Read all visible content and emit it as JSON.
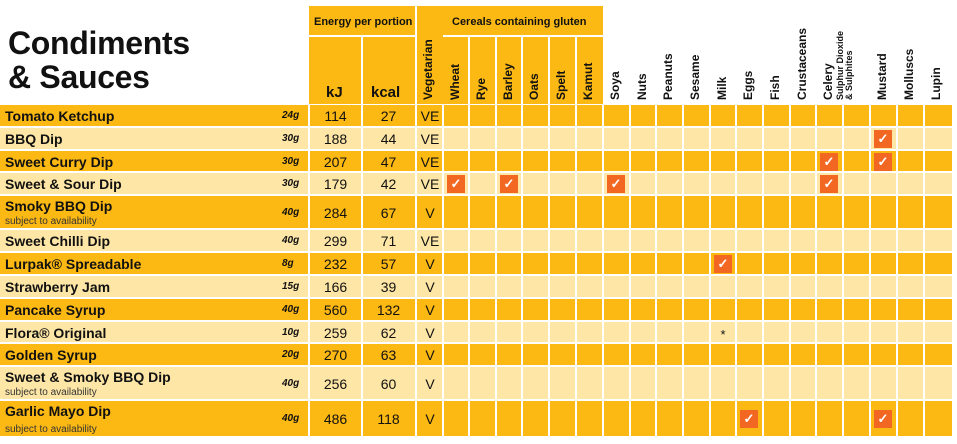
{
  "title_line1": "Condiments",
  "title_line2": "& Sauces",
  "headers": {
    "energy": "Energy per portion",
    "kj": "kJ",
    "kcal": "kcal",
    "vegetarian": "Vegetarian",
    "cereals": "Cereals containing gluten",
    "allergens": [
      "Wheat",
      "Rye",
      "Barley",
      "Oats",
      "Spelt",
      "Kamut",
      "Soya",
      "Nuts",
      "Peanuts",
      "Sesame",
      "Milk",
      "Eggs",
      "Fish",
      "Crustaceans",
      "Celery",
      "Sulphur Dioxide & Sulphites",
      "Mustard",
      "Molluscs",
      "Lupin"
    ]
  },
  "colors": {
    "row_dark": "#fcb813",
    "row_light": "#fde6a6",
    "tick": "#f26722",
    "header_gold": "#fbc934"
  },
  "rows": [
    {
      "name": "Tomato Ketchup",
      "sub": "",
      "portion": "24g",
      "kj": "114",
      "kcal": "27",
      "veg": "VE",
      "ticks": [],
      "stars": []
    },
    {
      "name": "BBQ Dip",
      "sub": "",
      "portion": "30g",
      "kj": "188",
      "kcal": "44",
      "veg": "VE",
      "ticks": [
        "Mustard"
      ],
      "stars": []
    },
    {
      "name": "Sweet Curry Dip",
      "sub": "",
      "portion": "30g",
      "kj": "207",
      "kcal": "47",
      "veg": "VE",
      "ticks": [
        "Celery",
        "Mustard"
      ],
      "stars": []
    },
    {
      "name": "Sweet & Sour Dip",
      "sub": "",
      "portion": "30g",
      "kj": "179",
      "kcal": "42",
      "veg": "VE",
      "ticks": [
        "Wheat",
        "Barley",
        "Soya",
        "Celery"
      ],
      "stars": []
    },
    {
      "name": "Smoky BBQ Dip",
      "sub": "subject to availability",
      "portion": "40g",
      "kj": "284",
      "kcal": "67",
      "veg": "V",
      "ticks": [],
      "stars": []
    },
    {
      "name": "Sweet Chilli Dip",
      "sub": "",
      "portion": "40g",
      "kj": "299",
      "kcal": "71",
      "veg": "VE",
      "ticks": [],
      "stars": []
    },
    {
      "name": "Lurpak® Spreadable",
      "sub": "",
      "portion": "8g",
      "kj": "232",
      "kcal": "57",
      "veg": "V",
      "ticks": [
        "Milk"
      ],
      "stars": []
    },
    {
      "name": "Strawberry Jam",
      "sub": "",
      "portion": "15g",
      "kj": "166",
      "kcal": "39",
      "veg": "V",
      "ticks": [],
      "stars": []
    },
    {
      "name": "Pancake Syrup",
      "sub": "",
      "portion": "40g",
      "kj": "560",
      "kcal": "132",
      "veg": "V",
      "ticks": [],
      "stars": []
    },
    {
      "name": "Flora® Original",
      "sub": "",
      "portion": "10g",
      "kj": "259",
      "kcal": "62",
      "veg": "V",
      "ticks": [],
      "stars": [
        "Milk"
      ]
    },
    {
      "name": "Golden Syrup",
      "sub": "",
      "portion": "20g",
      "kj": "270",
      "kcal": "63",
      "veg": "V",
      "ticks": [],
      "stars": []
    },
    {
      "name": "Sweet & Smoky BBQ Dip",
      "sub": "subject to availability",
      "portion": "40g",
      "kj": "256",
      "kcal": "60",
      "veg": "V",
      "ticks": [],
      "stars": []
    },
    {
      "name": "Garlic Mayo Dip",
      "sub": "subject to availability",
      "portion": "40g",
      "kj": "486",
      "kcal": "118",
      "veg": "V",
      "ticks": [
        "Eggs",
        "Mustard"
      ],
      "stars": []
    }
  ]
}
